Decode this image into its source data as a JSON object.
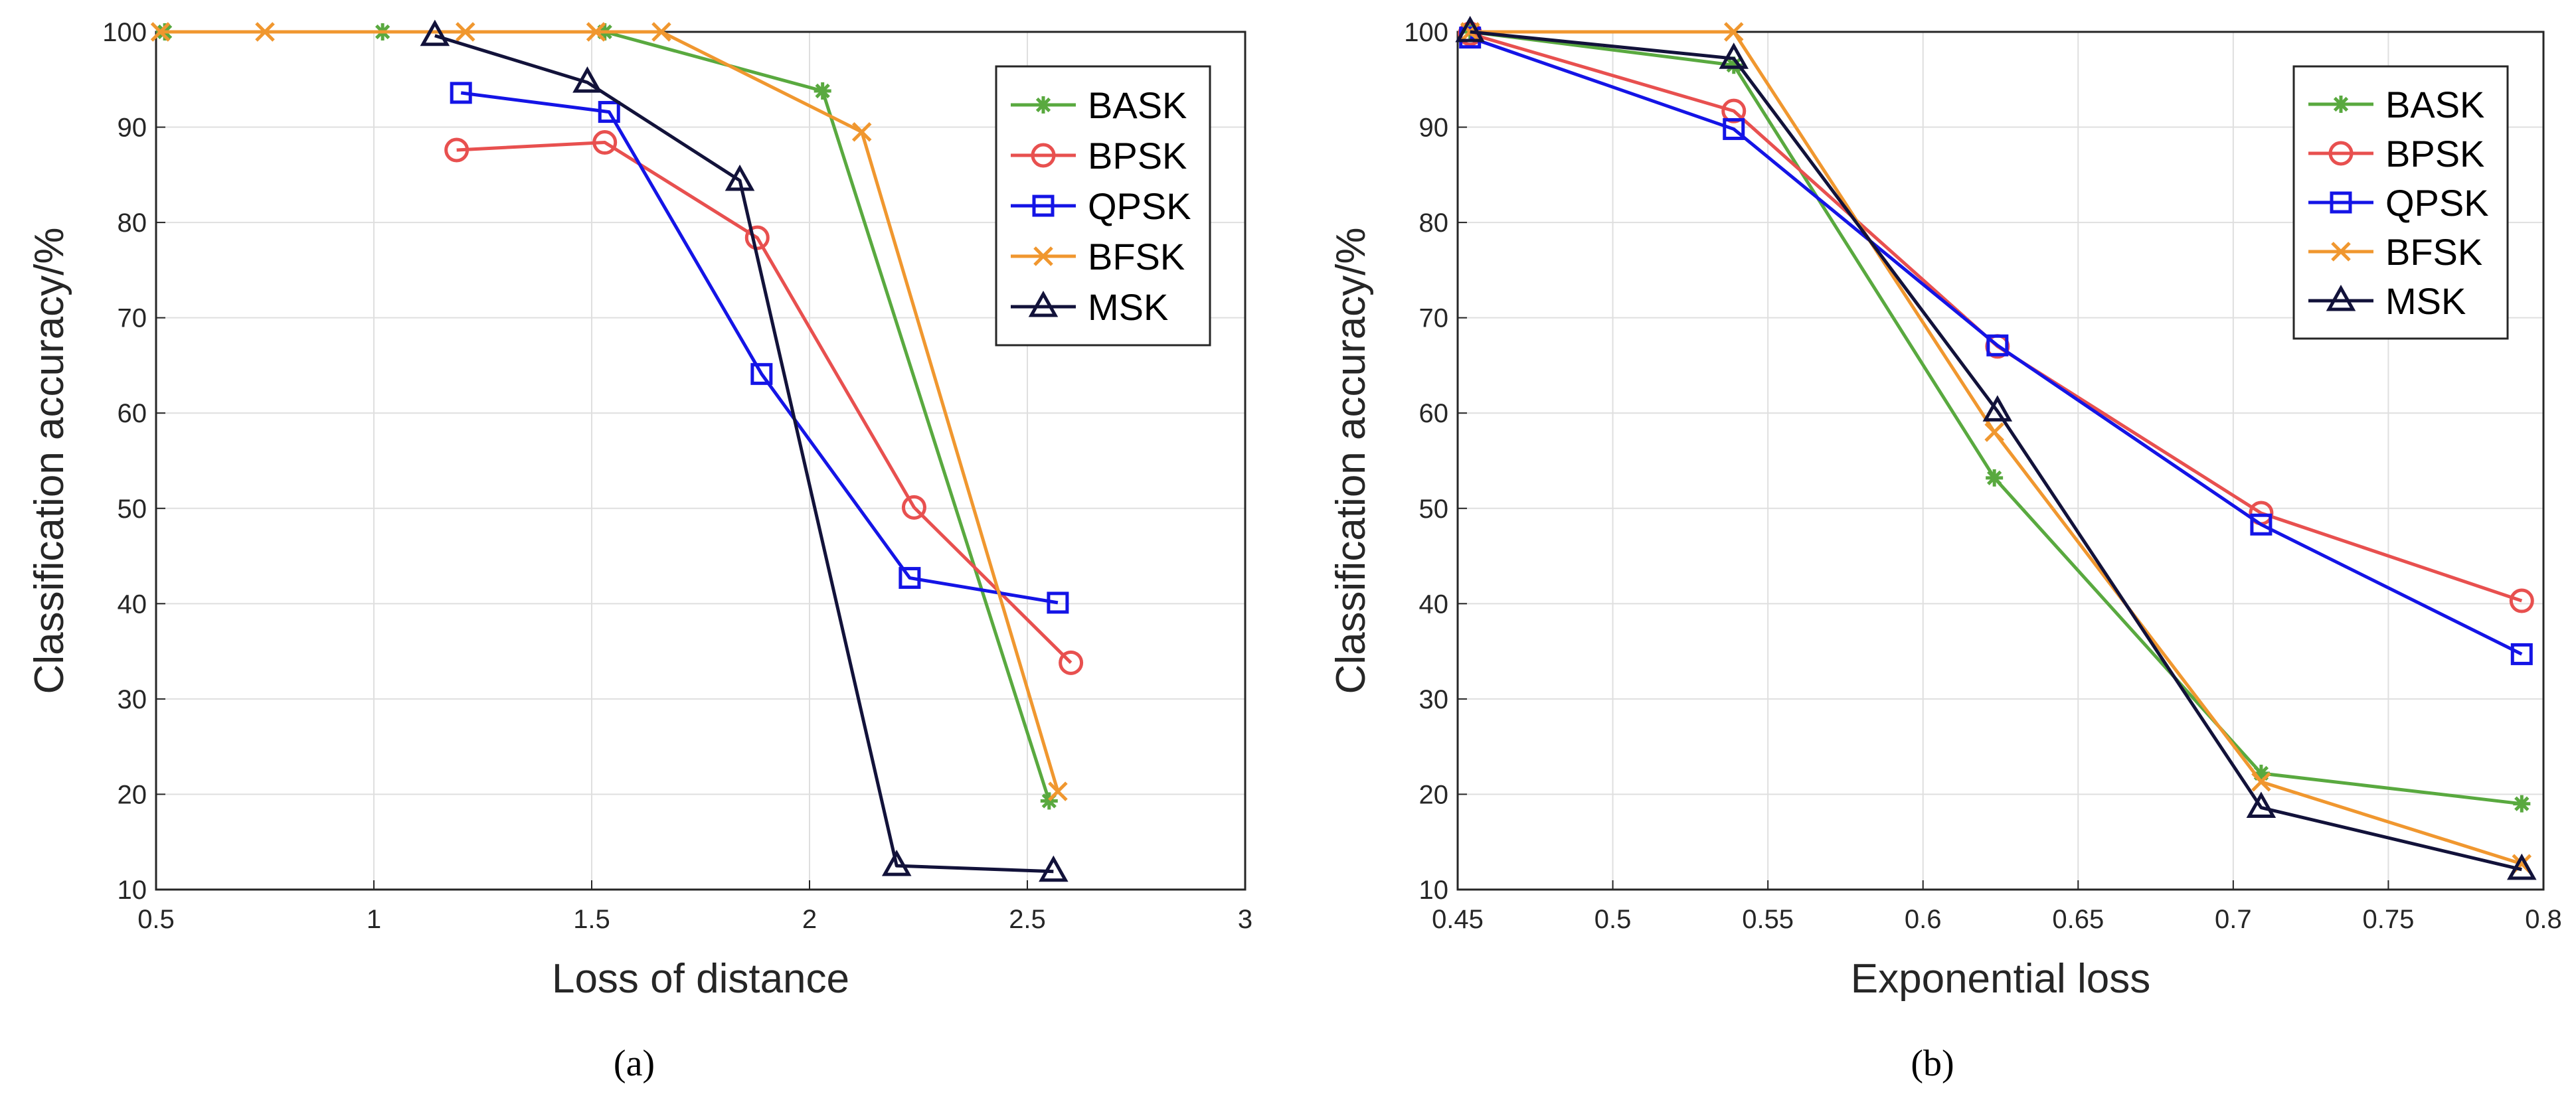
{
  "chart_data": [
    {
      "type": "line",
      "caption": "(a)",
      "xlabel": "Loss of distance",
      "ylabel": "Classification accuracy/%",
      "xlim": [
        0.5,
        3
      ],
      "ylim": [
        10,
        100
      ],
      "xticks": [
        "0.5",
        "1",
        "1.5",
        "2",
        "2.5",
        "3"
      ],
      "yticks": [
        "10",
        "20",
        "30",
        "40",
        "50",
        "60",
        "70",
        "80",
        "90",
        "100"
      ],
      "grid": true,
      "legend_position": "top-right",
      "series": [
        {
          "name": "BASK",
          "color": "#59a93f",
          "marker": "asterisk",
          "x": [
            0.52,
            1.02,
            1.53,
            2.03,
            2.55
          ],
          "y": [
            100,
            100,
            100,
            93.8,
            19.3
          ]
        },
        {
          "name": "BPSK",
          "color": "#e8504f",
          "marker": "circle",
          "x": [
            1.19,
            1.53,
            1.88,
            2.24,
            2.6
          ],
          "y": [
            87.6,
            88.4,
            78.4,
            50.1,
            33.8
          ]
        },
        {
          "name": "QPSK",
          "color": "#1414e6",
          "marker": "square",
          "x": [
            1.2,
            1.54,
            1.89,
            2.23,
            2.57
          ],
          "y": [
            93.6,
            91.6,
            64.1,
            42.7,
            40.1
          ]
        },
        {
          "name": "BFSK",
          "color": "#f0972f",
          "marker": "x",
          "x": [
            0.51,
            0.75,
            1.21,
            1.51,
            1.66,
            2.12,
            2.57
          ],
          "y": [
            100,
            100,
            100,
            100,
            100,
            89.5,
            20.3
          ]
        },
        {
          "name": "MSK",
          "color": "#12123a",
          "marker": "triangle",
          "x": [
            1.14,
            1.49,
            1.84,
            2.2,
            2.56
          ],
          "y": [
            99.6,
            94.7,
            84.4,
            12.5,
            11.9
          ]
        }
      ]
    },
    {
      "type": "line",
      "caption": "(b)",
      "xlabel": "Exponential loss",
      "ylabel": "Classification accuracy/%",
      "xlim": [
        0.45,
        0.8
      ],
      "ylim": [
        10,
        100
      ],
      "xticks": [
        "0.45",
        "0.5",
        "0.55",
        "0.6",
        "0.65",
        "0.7",
        "0.75",
        "0.8"
      ],
      "yticks": [
        "10",
        "20",
        "30",
        "40",
        "50",
        "60",
        "70",
        "80",
        "90",
        "100"
      ],
      "grid": true,
      "legend_position": "top-right",
      "series": [
        {
          "name": "BASK",
          "color": "#59a93f",
          "marker": "asterisk",
          "x": [
            0.454,
            0.539,
            0.623,
            0.709,
            0.793
          ],
          "y": [
            100,
            96.5,
            53.2,
            22.2,
            19.0
          ]
        },
        {
          "name": "BPSK",
          "color": "#e8504f",
          "marker": "circle",
          "x": [
            0.454,
            0.539,
            0.624,
            0.709,
            0.793
          ],
          "y": [
            99.8,
            91.7,
            67.0,
            49.5,
            40.3
          ]
        },
        {
          "name": "QPSK",
          "color": "#1414e6",
          "marker": "square",
          "x": [
            0.454,
            0.539,
            0.624,
            0.709,
            0.793
          ],
          "y": [
            99.4,
            89.8,
            67.1,
            48.3,
            34.7
          ]
        },
        {
          "name": "BFSK",
          "color": "#f0972f",
          "marker": "x",
          "x": [
            0.454,
            0.539,
            0.623,
            0.709,
            0.793
          ],
          "y": [
            100,
            100,
            58.0,
            21.3,
            12.7
          ]
        },
        {
          "name": "MSK",
          "color": "#12123a",
          "marker": "triangle",
          "x": [
            0.454,
            0.539,
            0.624,
            0.709,
            0.793
          ],
          "y": [
            100,
            97.2,
            60.2,
            18.6,
            12.1
          ]
        }
      ]
    }
  ]
}
